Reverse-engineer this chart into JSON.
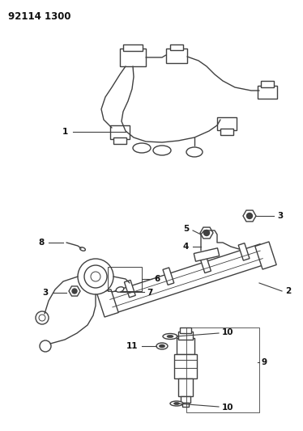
{
  "title": "92114 1300",
  "background_color": "#ffffff",
  "line_color": "#404040",
  "text_color": "#111111",
  "figsize": [
    3.74,
    5.33
  ],
  "dpi": 100,
  "lw": 1.0
}
